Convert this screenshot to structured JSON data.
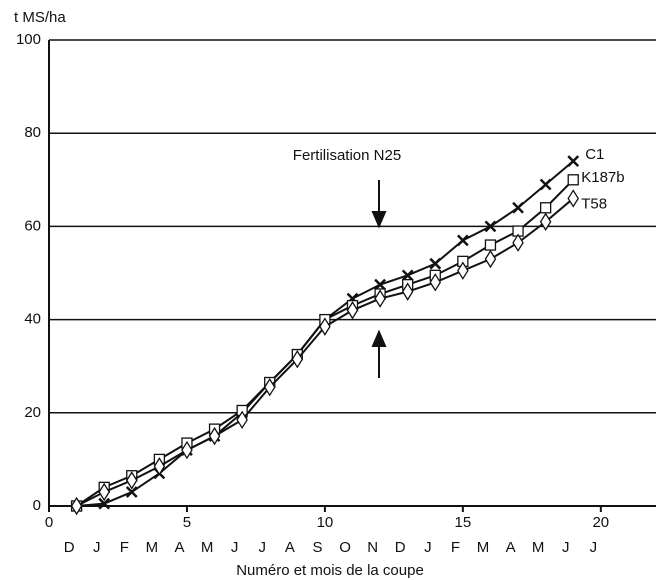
{
  "chart_data": {
    "type": "line",
    "y_label": "t MS/ha",
    "x_label": "Numéro et mois de la coupe",
    "annotation": "Fertilisation N25",
    "months": [
      "D",
      "J",
      "F",
      "M",
      "A",
      "M",
      "J",
      "J",
      "A",
      "S",
      "O",
      "N",
      "D",
      "J",
      "F",
      "M",
      "A",
      "M",
      "J",
      "J"
    ],
    "x": [
      1,
      2,
      3,
      4,
      5,
      6,
      7,
      8,
      9,
      10,
      11,
      12,
      13,
      14,
      15,
      16,
      17,
      18,
      19
    ],
    "series": [
      {
        "name": "C1",
        "color": "#111111",
        "marker": "cross",
        "values": [
          0,
          0.5,
          3,
          7,
          12,
          15,
          20,
          26.5,
          32.5,
          40,
          44.5,
          47.5,
          49.5,
          52,
          57,
          60,
          64,
          69,
          74
        ]
      },
      {
        "name": "K187b",
        "color": "#111111",
        "marker": "square",
        "values": [
          0,
          4,
          6.5,
          10,
          13.5,
          16.5,
          20.5,
          26.5,
          32.5,
          40,
          43,
          45.5,
          47.5,
          49.5,
          52.5,
          56,
          59,
          64,
          70
        ]
      },
      {
        "name": "T58",
        "color": "#111111",
        "marker": "diamond",
        "values": [
          0,
          3,
          5.5,
          8.5,
          12,
          15,
          18.5,
          25.5,
          31.5,
          38.5,
          42,
          44.5,
          46,
          48,
          50.5,
          53,
          56.5,
          61,
          66
        ]
      }
    ],
    "xlim": [
      0,
      22
    ],
    "xticks": [
      0,
      5,
      10,
      15,
      20
    ],
    "ylim": [
      0,
      100
    ],
    "yticks": [
      0,
      20,
      40,
      60,
      80,
      100
    ],
    "grid": true
  }
}
